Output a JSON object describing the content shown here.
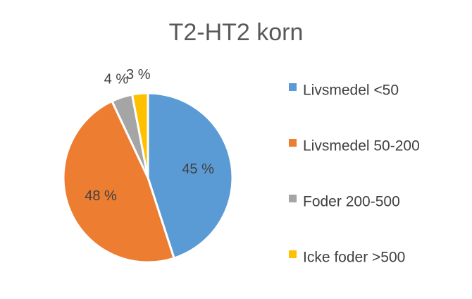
{
  "chart_data": {
    "type": "pie",
    "title": "T2-HT2 korn",
    "categories": [
      "Livsmedel <50",
      "Livsmedel 50-200",
      "Foder 200-500",
      "Icke foder >500"
    ],
    "values": [
      45,
      48,
      4,
      3
    ],
    "value_labels": [
      "45 %",
      "48 %",
      "4 %",
      "3 %"
    ],
    "colors": [
      "#5b9bd5",
      "#ed7d31",
      "#a5a5a5",
      "#ffc000"
    ],
    "legend": "right"
  }
}
